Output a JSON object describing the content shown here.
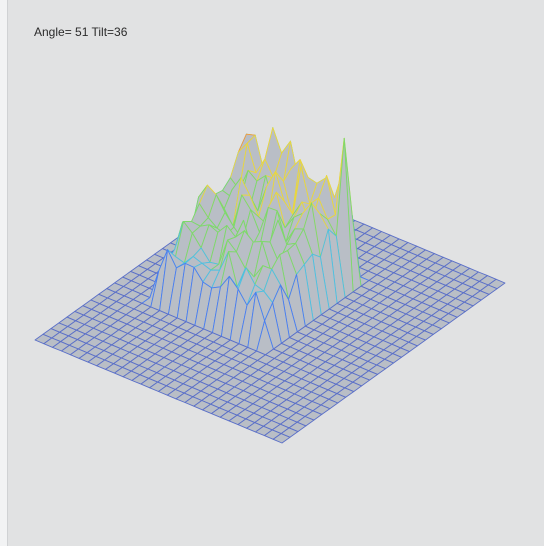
{
  "viewer": {
    "view_label": "Angle= 51 Tilt=36",
    "angle_deg": 51,
    "tilt_deg": 36
  },
  "surface": {
    "type": "wireframe-3d-surface",
    "grid_resolution": 28,
    "base_color": "#5a6fc8",
    "surface_fill": "#b9bec6",
    "background_color": "#e1e2e3",
    "height_colormap": [
      "#4a7ff0",
      "#4fc0e0",
      "#7ed96a",
      "#e8d640",
      "#f39a3a",
      "#d93a2a"
    ]
  }
}
